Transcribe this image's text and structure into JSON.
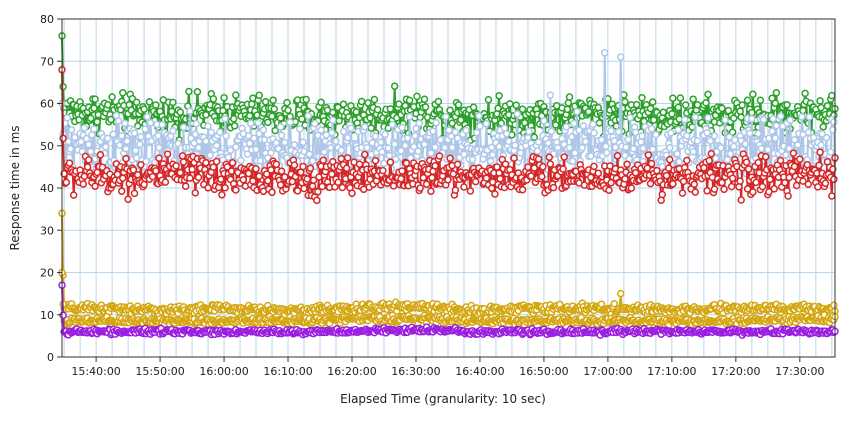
{
  "chart_data": {
    "type": "line",
    "xlabel": "Elapsed Time (granularity: 10 sec)",
    "ylabel": "Response time in ms",
    "ylim": [
      0,
      80
    ],
    "xlim": [
      "15:34:40",
      "17:35:30"
    ],
    "y_ticks": [
      "0",
      "10",
      "20",
      "30",
      "40",
      "50",
      "60",
      "70",
      "80"
    ],
    "x_ticks": [
      "15:40:00",
      "15:50:00",
      "16:00:00",
      "16:10:00",
      "16:20:00",
      "16:30:00",
      "16:40:00",
      "16:50:00",
      "17:00:00",
      "17:10:00",
      "17:20:00",
      "17:30:00"
    ],
    "grid": true,
    "legend": "none",
    "series": [
      {
        "color": "#2ca02c",
        "start_value": 76,
        "typical": 57.5,
        "jitter": 2.2,
        "x": [
          "15:40:00",
          "15:50:00",
          "16:00:00",
          "16:10:00",
          "16:20:00",
          "16:30:00",
          "16:40:00",
          "16:50:00",
          "17:00:00",
          "17:10:00",
          "17:20:00",
          "17:30:00"
        ],
        "values": [
          58,
          57,
          58,
          57,
          57,
          58,
          57,
          57,
          58,
          57,
          57,
          58
        ]
      },
      {
        "color": "#aec7e8",
        "start_value": 60,
        "typical": 49,
        "jitter": 3.5,
        "peaks": [
          {
            "x": "16:59:30",
            "value": 72
          },
          {
            "x": "17:02:00",
            "value": 71
          },
          {
            "x": "16:51:00",
            "value": 62
          }
        ],
        "x": [
          "15:40:00",
          "15:50:00",
          "16:00:00",
          "16:10:00",
          "16:20:00",
          "16:30:00",
          "16:40:00",
          "16:50:00",
          "17:00:00",
          "17:10:00",
          "17:20:00",
          "17:30:00"
        ],
        "values": [
          50,
          49,
          49,
          49,
          49,
          50,
          49,
          49,
          50,
          49,
          49,
          50
        ]
      },
      {
        "color": "#d62728",
        "start_value": 68,
        "typical": 43,
        "jitter": 2.2,
        "x": [
          "15:40:00",
          "15:50:00",
          "16:00:00",
          "16:10:00",
          "16:20:00",
          "16:30:00",
          "16:40:00",
          "16:50:00",
          "17:00:00",
          "17:10:00",
          "17:20:00",
          "17:30:00"
        ],
        "values": [
          43,
          43,
          43,
          42,
          43,
          43,
          43,
          43,
          43,
          43,
          43,
          43
        ]
      },
      {
        "color": "#d4a711",
        "start_value": 34,
        "typical": 11.5,
        "jitter": 0.5,
        "peaks": [
          {
            "x": "17:02:00",
            "value": 15
          },
          {
            "x": "16:59:00",
            "value": 12.5
          }
        ],
        "x": [
          "15:40:00",
          "15:50:00",
          "16:00:00",
          "16:10:00",
          "16:20:00",
          "16:30:00",
          "16:40:00",
          "16:50:00",
          "17:00:00",
          "17:10:00",
          "17:20:00",
          "17:30:00"
        ],
        "values": [
          11.5,
          11,
          11.5,
          11,
          11.5,
          12,
          11,
          11.5,
          11.5,
          11,
          11.5,
          11.5
        ]
      },
      {
        "color": "#d4a711",
        "start_value": 20,
        "typical": 8.5,
        "jitter": 0.4,
        "x": [
          "15:40:00",
          "15:50:00",
          "16:00:00",
          "16:10:00",
          "16:20:00",
          "16:30:00",
          "16:40:00",
          "16:50:00",
          "17:00:00",
          "17:10:00",
          "17:20:00",
          "17:30:00"
        ],
        "values": [
          8.5,
          8.5,
          8.5,
          8.5,
          9,
          9,
          8.5,
          8.5,
          8.5,
          8.5,
          8.5,
          9
        ]
      },
      {
        "color": "#9b1fe0",
        "start_value": 17,
        "typical": 6,
        "jitter": 0.3,
        "x": [
          "15:40:00",
          "15:50:00",
          "16:00:00",
          "16:10:00",
          "16:20:00",
          "16:30:00",
          "16:40:00",
          "16:50:00",
          "17:00:00",
          "17:10:00",
          "17:20:00",
          "17:30:00"
        ],
        "values": [
          6,
          6,
          6,
          6,
          6,
          6.5,
          6,
          6,
          6,
          6,
          6,
          6
        ]
      }
    ]
  }
}
